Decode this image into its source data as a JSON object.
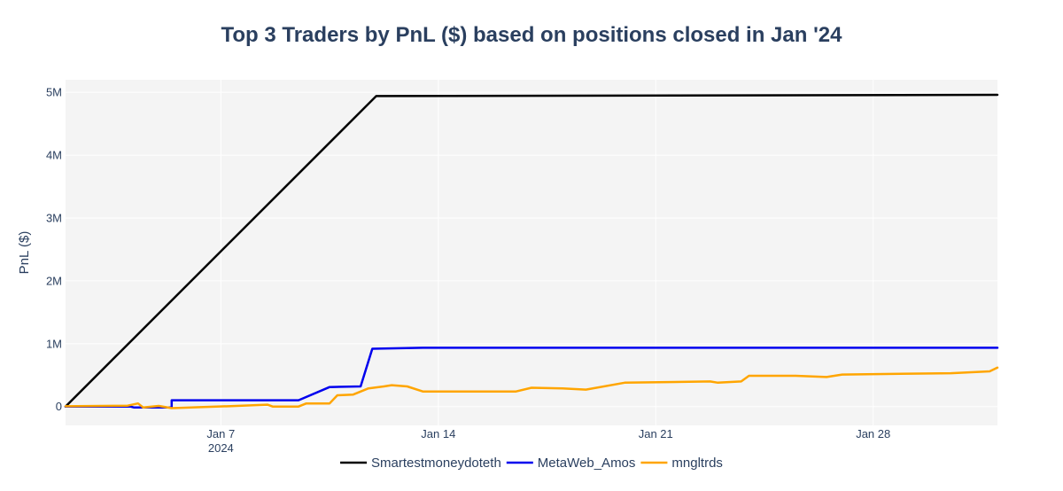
{
  "chart_data": {
    "type": "line",
    "title": "Top 3 Traders by PnL ($) based on positions closed in Jan '24",
    "xlabel": "",
    "ylabel": "PnL ($)",
    "xlim": [
      "2024-01-02",
      "2024-01-31"
    ],
    "ylim": [
      -300000,
      5200000
    ],
    "x_ticks": [
      {
        "date": "2024-01-07",
        "label": "Jan 7",
        "sublabel": "2024"
      },
      {
        "date": "2024-01-14",
        "label": "Jan 14",
        "sublabel": ""
      },
      {
        "date": "2024-01-21",
        "label": "Jan 21",
        "sublabel": ""
      },
      {
        "date": "2024-01-28",
        "label": "Jan 28",
        "sublabel": ""
      }
    ],
    "y_ticks": [
      {
        "value": 0,
        "label": "0"
      },
      {
        "value": 1000000,
        "label": "1M"
      },
      {
        "value": 2000000,
        "label": "2M"
      },
      {
        "value": 3000000,
        "label": "3M"
      },
      {
        "value": 4000000,
        "label": "4M"
      },
      {
        "value": 5000000,
        "label": "5M"
      }
    ],
    "grid": true,
    "legend_position": "bottom-center",
    "series": [
      {
        "name": "Smartestmoneydoteth",
        "color": "#000000",
        "points": [
          [
            "2024-01-02 00:00",
            0
          ],
          [
            "2024-01-12 00:00",
            4940000
          ],
          [
            "2024-01-31 23:59",
            4960000
          ]
        ]
      },
      {
        "name": "MetaWeb_Amos",
        "color": "#0000ee",
        "points": [
          [
            "2024-01-02 00:00",
            0
          ],
          [
            "2024-01-04 02:00",
            0
          ],
          [
            "2024-01-04 05:00",
            -15000
          ],
          [
            "2024-01-05 10:00",
            -15000
          ],
          [
            "2024-01-05 10:00",
            100000
          ],
          [
            "2024-01-09 12:00",
            100000
          ],
          [
            "2024-01-10 12:00",
            310000
          ],
          [
            "2024-01-11 12:00",
            320000
          ],
          [
            "2024-01-11 21:00",
            920000
          ],
          [
            "2024-01-13 12:00",
            935000
          ],
          [
            "2024-01-31 23:59",
            935000
          ]
        ]
      },
      {
        "name": "mngltrds",
        "color": "#ffa500",
        "points": [
          [
            "2024-01-02 00:00",
            5000
          ],
          [
            "2024-01-04 00:00",
            15000
          ],
          [
            "2024-01-04 08:00",
            50000
          ],
          [
            "2024-01-04 12:00",
            -15000
          ],
          [
            "2024-01-05 00:00",
            10000
          ],
          [
            "2024-01-05 10:00",
            -25000
          ],
          [
            "2024-01-07 12:00",
            10000
          ],
          [
            "2024-01-08 12:00",
            30000
          ],
          [
            "2024-01-08 16:00",
            0
          ],
          [
            "2024-01-09 12:00",
            0
          ],
          [
            "2024-01-09 18:00",
            50000
          ],
          [
            "2024-01-10 12:00",
            50000
          ],
          [
            "2024-01-10 18:00",
            180000
          ],
          [
            "2024-01-11 06:00",
            190000
          ],
          [
            "2024-01-11 18:00",
            290000
          ],
          [
            "2024-01-12 06:00",
            320000
          ],
          [
            "2024-01-12 12:00",
            340000
          ],
          [
            "2024-01-13 00:00",
            320000
          ],
          [
            "2024-01-13 12:00",
            240000
          ],
          [
            "2024-01-16 12:00",
            240000
          ],
          [
            "2024-01-17 00:00",
            300000
          ],
          [
            "2024-01-18 00:00",
            290000
          ],
          [
            "2024-01-18 18:00",
            270000
          ],
          [
            "2024-01-20 00:00",
            380000
          ],
          [
            "2024-01-22 18:00",
            400000
          ],
          [
            "2024-01-23 00:00",
            380000
          ],
          [
            "2024-01-23 18:00",
            400000
          ],
          [
            "2024-01-24 00:00",
            490000
          ],
          [
            "2024-01-25 12:00",
            490000
          ],
          [
            "2024-01-26 12:00",
            470000
          ],
          [
            "2024-01-27 00:00",
            510000
          ],
          [
            "2024-01-30 12:00",
            530000
          ],
          [
            "2024-01-31 18:00",
            560000
          ],
          [
            "2024-01-31 23:59",
            620000
          ]
        ]
      }
    ]
  }
}
